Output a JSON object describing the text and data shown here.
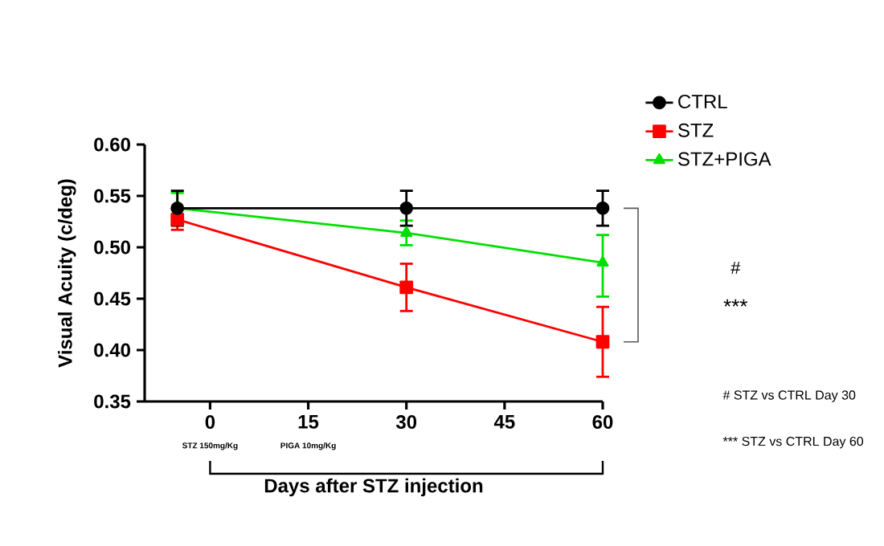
{
  "chart_data": {
    "type": "line",
    "xlabel": "Days after STZ injection",
    "ylabel": "Visual Acuity (c/deg)",
    "x": [
      -5,
      30,
      60
    ],
    "series": [
      {
        "name": "CTRL",
        "color": "#000000",
        "marker": "circle",
        "values": [
          0.538,
          0.538,
          0.538
        ],
        "errors": [
          0.017,
          0.017,
          0.017
        ]
      },
      {
        "name": "STZ",
        "color": "#ff0000",
        "marker": "square",
        "values": [
          0.527,
          0.461,
          0.408
        ],
        "errors": [
          0.01,
          0.023,
          [
            0.374,
            0.442
          ]
        ]
      },
      {
        "name": "STZ+PIGA",
        "color": "#00e000",
        "marker": "triangle",
        "values": [
          0.538,
          0.514,
          0.485
        ],
        "errors": [
          0.015,
          0.012,
          [
            0.452,
            0.512
          ]
        ]
      }
    ],
    "xlim": [
      -10,
      60
    ],
    "xticks": [
      0,
      15,
      30,
      45,
      60
    ],
    "ylim": [
      0.35,
      0.6
    ],
    "yticks": [
      0.35,
      {
        "value": 0.4,
        "label": "0.40"
      },
      0.45,
      {
        "value": 0.5,
        "label": "0.50"
      },
      0.55,
      {
        "value": 0.6,
        "label": "0.60"
      }
    ],
    "legend": "top right",
    "grid": false,
    "line_style": "solid",
    "annotations": [
      "STZ 150mg/Kg",
      "PIGA 10mg/Kg",
      "#",
      "***",
      "# STZ vs CTRL Day 30",
      "*** STZ vs CTRL Day 60"
    ]
  }
}
